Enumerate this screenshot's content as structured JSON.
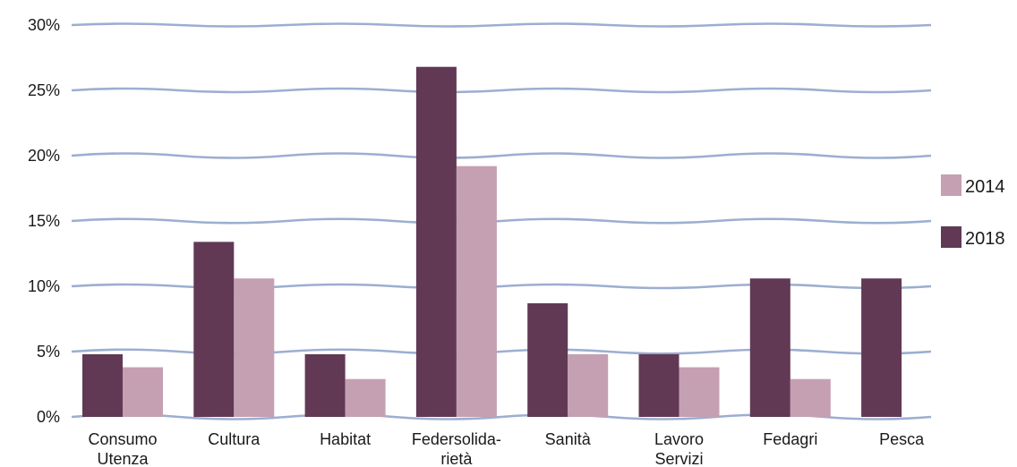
{
  "chart_data": {
    "type": "bar",
    "categories": [
      [
        "Consumo",
        "Utenza"
      ],
      [
        "Cultura"
      ],
      [
        "Habitat"
      ],
      [
        "Federsolida-",
        "rietà"
      ],
      [
        "Sanità"
      ],
      [
        "Lavoro",
        "Servizi"
      ],
      [
        "Fedagri"
      ],
      [
        "Pesca"
      ]
    ],
    "series": [
      {
        "name": "2018",
        "color": "#613955",
        "values": [
          4.8,
          13.4,
          4.8,
          26.8,
          8.7,
          4.8,
          10.6,
          10.6
        ]
      },
      {
        "name": "2014",
        "color": "#c5a0b2",
        "values": [
          3.8,
          10.6,
          2.9,
          19.2,
          4.8,
          3.8,
          2.9,
          null
        ]
      }
    ],
    "legend_order": [
      "2014",
      "2018"
    ],
    "yticks": [
      "0%",
      "5%",
      "10%",
      "15%",
      "20%",
      "25%",
      "30%"
    ],
    "ylim": [
      0,
      30
    ],
    "grid": true,
    "grid_color": "#9caed1",
    "legend_position": "right"
  }
}
